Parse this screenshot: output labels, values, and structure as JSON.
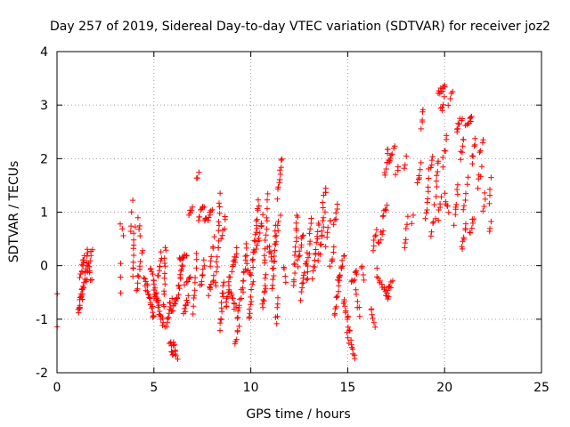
{
  "chart_data": {
    "type": "scatter",
    "title": "Day 257 of 2019, Sidereal Day-to-day VTEC variation (SDTVAR) for receiver joz2",
    "xlabel": "GPS time / hours",
    "ylabel": "SDTVAR / TECUs",
    "xlim": [
      0,
      25
    ],
    "ylim": [
      -2,
      4
    ],
    "xticks": [
      "0",
      "5",
      "10",
      "15",
      "20",
      "25"
    ],
    "yticks": [
      "-2",
      "-1",
      "0",
      "1",
      "2",
      "3",
      "4"
    ],
    "grid": true,
    "marker": "+",
    "marker_color": "#ff0000",
    "series": [
      {
        "name": "SDTVAR",
        "color": "#ff0000",
        "segments": [
          [
            0.0,
            -0.5,
            0.0,
            -0.6,
            1
          ],
          [
            0.0,
            -1.2,
            0.0,
            -1.2,
            1
          ],
          [
            1.1,
            -0.9,
            1.3,
            -0.4,
            14
          ],
          [
            1.2,
            -0.2,
            1.4,
            0.2,
            10
          ],
          [
            1.3,
            -0.6,
            1.6,
            0.3,
            12
          ],
          [
            1.5,
            -0.3,
            1.8,
            0.3,
            10
          ],
          [
            1.6,
            0.0,
            1.8,
            -0.3,
            6
          ],
          [
            3.3,
            0.0,
            3.3,
            -0.5,
            3
          ],
          [
            3.3,
            0.8,
            3.4,
            0.5,
            3
          ],
          [
            3.8,
            0.6,
            3.9,
            1.2,
            4
          ],
          [
            3.9,
            -0.2,
            4.0,
            0.7,
            10
          ],
          [
            4.1,
            -0.5,
            4.4,
            0.3,
            10
          ],
          [
            4.2,
            0.9,
            4.3,
            0.5,
            4
          ],
          [
            4.5,
            -0.2,
            4.6,
            -0.5,
            4
          ],
          [
            4.6,
            -0.3,
            5.0,
            -1.0,
            16
          ],
          [
            4.8,
            0.0,
            5.2,
            -0.7,
            14
          ],
          [
            5.0,
            -0.5,
            5.5,
            -1.1,
            16
          ],
          [
            5.2,
            -0.2,
            5.4,
            0.2,
            8
          ],
          [
            5.5,
            -0.8,
            5.6,
            0.4,
            12
          ],
          [
            5.6,
            -1.2,
            5.9,
            -0.6,
            12
          ],
          [
            5.8,
            -1.4,
            6.0,
            -1.7,
            8
          ],
          [
            6.0,
            -1.4,
            6.2,
            -1.7,
            8
          ],
          [
            5.9,
            -0.9,
            6.2,
            -0.6,
            10
          ],
          [
            6.2,
            -0.6,
            6.5,
            0.1,
            14
          ],
          [
            6.3,
            0.1,
            6.7,
            0.2,
            8
          ],
          [
            6.5,
            -0.9,
            6.8,
            -0.6,
            8
          ],
          [
            6.6,
            -0.3,
            6.9,
            -0.2,
            6
          ],
          [
            7.0,
            -0.9,
            7.2,
            0.2,
            10
          ],
          [
            6.8,
            1.0,
            7.0,
            1.1,
            5
          ],
          [
            7.2,
            1.6,
            7.3,
            1.8,
            3
          ],
          [
            7.3,
            0.9,
            7.6,
            1.1,
            8
          ],
          [
            7.4,
            -0.4,
            7.6,
            0.1,
            8
          ],
          [
            7.6,
            0.8,
            8.0,
            1.0,
            10
          ],
          [
            7.8,
            -0.5,
            8.1,
            -0.2,
            8
          ],
          [
            7.9,
            0.0,
            8.1,
            0.5,
            6
          ],
          [
            8.2,
            -0.4,
            8.4,
            1.3,
            16
          ],
          [
            8.4,
            -1.2,
            8.6,
            -0.3,
            12
          ],
          [
            8.5,
            0.5,
            8.7,
            0.9,
            6
          ],
          [
            8.7,
            -0.8,
            8.9,
            -0.2,
            10
          ],
          [
            8.9,
            -0.4,
            9.2,
            -0.8,
            10
          ],
          [
            9.0,
            -0.1,
            9.3,
            0.3,
            10
          ],
          [
            9.2,
            -1.5,
            9.4,
            -1.1,
            6
          ],
          [
            9.3,
            -1.0,
            9.5,
            -0.5,
            8
          ],
          [
            9.6,
            -0.5,
            9.8,
            0.4,
            12
          ],
          [
            9.8,
            0.0,
            10.0,
            -0.2,
            6
          ],
          [
            9.9,
            -1.0,
            10.1,
            -0.3,
            10
          ],
          [
            10.1,
            0.0,
            10.4,
            1.2,
            18
          ],
          [
            10.3,
            0.3,
            10.6,
            0.9,
            10
          ],
          [
            10.6,
            -0.8,
            10.8,
            -0.2,
            10
          ],
          [
            10.7,
            0.0,
            10.9,
            1.3,
            12
          ],
          [
            10.9,
            0.4,
            11.1,
            0.0,
            8
          ],
          [
            11.1,
            -0.4,
            11.3,
            0.7,
            14
          ],
          [
            11.3,
            -1.1,
            11.4,
            -0.6,
            6
          ],
          [
            11.4,
            1.3,
            11.6,
            2.0,
            10
          ],
          [
            11.3,
            0.5,
            11.5,
            0.9,
            6
          ],
          [
            11.7,
            0.0,
            11.8,
            -0.3,
            4
          ],
          [
            12.2,
            -0.4,
            12.4,
            1.0,
            16
          ],
          [
            12.4,
            0.0,
            12.7,
            0.6,
            10
          ],
          [
            12.6,
            -0.6,
            12.9,
            0.2,
            12
          ],
          [
            12.9,
            -0.3,
            13.1,
            0.9,
            12
          ],
          [
            13.2,
            -0.2,
            13.5,
            0.8,
            14
          ],
          [
            13.5,
            0.1,
            13.8,
            1.0,
            12
          ],
          [
            13.7,
            1.1,
            13.9,
            1.5,
            6
          ],
          [
            13.9,
            0.4,
            14.1,
            0.9,
            6
          ],
          [
            14.1,
            0.0,
            14.3,
            0.3,
            6
          ],
          [
            14.3,
            0.8,
            14.5,
            1.1,
            6
          ],
          [
            14.3,
            -0.9,
            14.6,
            -0.2,
            12
          ],
          [
            14.5,
            -0.3,
            14.8,
            0.2,
            10
          ],
          [
            14.8,
            -0.6,
            15.1,
            -1.2,
            12
          ],
          [
            15.0,
            -1.3,
            15.4,
            -1.7,
            10
          ],
          [
            15.2,
            -0.3,
            15.5,
            -0.1,
            8
          ],
          [
            15.4,
            -0.5,
            15.6,
            -0.9,
            6
          ],
          [
            15.7,
            0.0,
            15.8,
            -0.3,
            4
          ],
          [
            16.2,
            -0.8,
            16.4,
            -1.1,
            6
          ],
          [
            16.3,
            0.3,
            16.5,
            0.7,
            6
          ],
          [
            16.5,
            -0.1,
            16.6,
            -0.3,
            4
          ],
          [
            16.6,
            0.4,
            16.8,
            0.7,
            6
          ],
          [
            16.7,
            -0.3,
            17.1,
            -0.6,
            10
          ],
          [
            17.0,
            -0.5,
            17.3,
            -0.3,
            8
          ],
          [
            16.8,
            0.9,
            17.0,
            1.1,
            6
          ],
          [
            16.9,
            1.7,
            17.1,
            2.2,
            8
          ],
          [
            17.1,
            1.9,
            17.4,
            2.2,
            8
          ],
          [
            17.5,
            1.7,
            17.6,
            1.9,
            3
          ],
          [
            17.9,
            1.8,
            18.0,
            2.0,
            3
          ],
          [
            17.9,
            0.3,
            18.0,
            0.5,
            3
          ],
          [
            18.0,
            0.7,
            18.1,
            0.9,
            3
          ],
          [
            18.3,
            0.8,
            18.4,
            0.9,
            2
          ],
          [
            18.6,
            1.5,
            18.8,
            1.9,
            6
          ],
          [
            18.8,
            2.6,
            18.9,
            2.9,
            5
          ],
          [
            19.0,
            0.9,
            19.2,
            1.6,
            8
          ],
          [
            19.2,
            1.8,
            19.4,
            2.0,
            5
          ],
          [
            19.3,
            0.6,
            19.5,
            0.9,
            5
          ],
          [
            19.5,
            1.2,
            19.7,
            2.0,
            8
          ],
          [
            19.7,
            0.9,
            19.8,
            1.3,
            5
          ],
          [
            19.7,
            3.2,
            20.0,
            3.4,
            10
          ],
          [
            19.8,
            2.9,
            20.0,
            3.1,
            5
          ],
          [
            19.9,
            1.9,
            20.1,
            2.4,
            6
          ],
          [
            20.0,
            1.3,
            20.2,
            1.0,
            6
          ],
          [
            20.2,
            3.0,
            20.4,
            3.3,
            4
          ],
          [
            20.5,
            0.8,
            20.7,
            1.5,
            8
          ],
          [
            20.6,
            2.5,
            20.9,
            2.8,
            8
          ],
          [
            20.8,
            2.0,
            21.0,
            2.4,
            6
          ],
          [
            20.9,
            0.3,
            21.1,
            0.8,
            8
          ],
          [
            21.0,
            1.0,
            21.2,
            1.6,
            6
          ],
          [
            21.1,
            2.6,
            21.4,
            2.8,
            8
          ],
          [
            21.3,
            0.6,
            21.5,
            0.9,
            6
          ],
          [
            21.4,
            1.9,
            21.6,
            2.4,
            6
          ],
          [
            21.7,
            1.5,
            21.9,
            1.8,
            5
          ],
          [
            21.8,
            2.1,
            22.0,
            2.4,
            4
          ],
          [
            22.0,
            1.0,
            22.1,
            1.3,
            4
          ],
          [
            22.3,
            0.7,
            22.4,
            0.8,
            3
          ],
          [
            22.3,
            1.2,
            22.4,
            1.6,
            4
          ]
        ]
      }
    ]
  }
}
